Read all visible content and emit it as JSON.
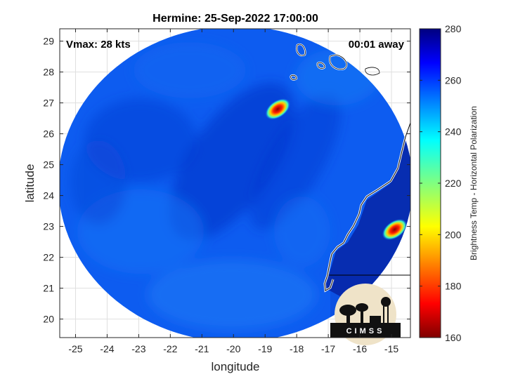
{
  "chart_data": {
    "type": "heatmap",
    "title": "Hermine: 25-Sep-2022 17:00:00",
    "xlabel": "longitude",
    "ylabel": "latitude",
    "xlim": [
      -25.5,
      -14.4
    ],
    "ylim": [
      19.4,
      29.4
    ],
    "x_ticks": [
      -25,
      -24,
      -23,
      -22,
      -21,
      -20,
      -19,
      -18,
      -17,
      -16,
      -15
    ],
    "y_ticks": [
      20,
      21,
      22,
      23,
      24,
      25,
      26,
      27,
      28,
      29
    ],
    "grid": true,
    "colorbar": {
      "label": "Brightness Temp - Horizontal Polarization",
      "range": [
        160,
        280
      ],
      "ticks": [
        160,
        180,
        200,
        220,
        240,
        260,
        280
      ]
    },
    "annotations": {
      "vmax": "Vmax: 28 kts",
      "time_away": "00:01 away"
    },
    "features": [
      {
        "name": "cold spot",
        "lon": -18.6,
        "lat": 26.8,
        "value": 165
      },
      {
        "name": "cold spot",
        "lon": -14.9,
        "lat": 22.9,
        "value": 172
      }
    ],
    "logo": "CIMSS"
  }
}
